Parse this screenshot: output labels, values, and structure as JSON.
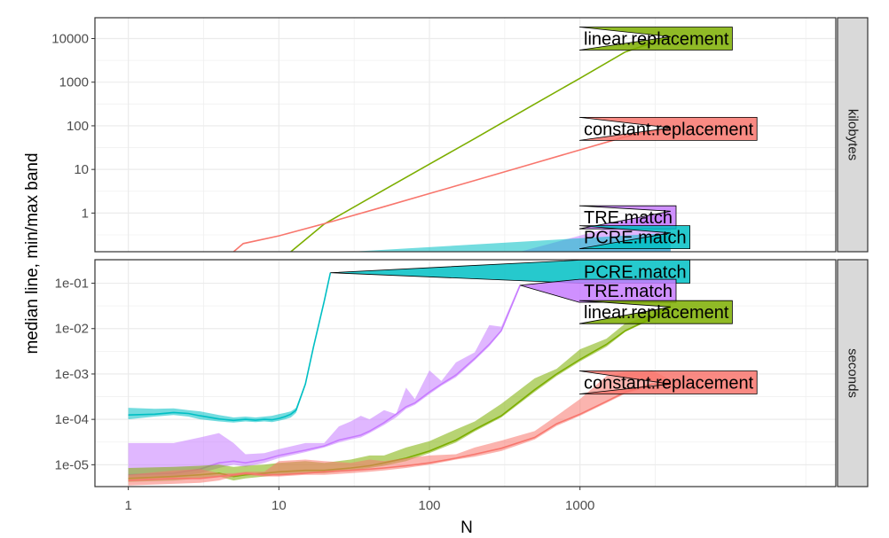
{
  "chart_data": {
    "type": "line",
    "xlabel": "N",
    "ylabel": "median line, min/max band",
    "x_scale": "log10",
    "x_ticks": [
      1,
      10,
      100,
      1000
    ],
    "x_tick_labels": [
      "1",
      "10",
      "100",
      "1000"
    ],
    "xlim": [
      0.6,
      50000
    ],
    "grid": true,
    "colors": {
      "constant.replacement": "#F8766D",
      "linear.replacement": "#7CAE00",
      "PCRE.match": "#00BFC4",
      "TRE.match": "#C77CFF"
    },
    "panels": [
      {
        "strip": "kilobytes",
        "y_scale": "log10",
        "ylim": [
          0.13,
          30000
        ],
        "y_ticks": [
          1,
          10,
          100,
          1000,
          10000
        ],
        "y_tick_labels": [
          "1",
          "10",
          "100",
          "1000",
          "10000"
        ],
        "series": [
          {
            "name": "linear.replacement",
            "x": [
              12,
              20,
              50,
              100,
              200,
              500,
              1000,
              2000,
              4000
            ],
            "median": [
              0.13,
              0.56,
              3.4,
              13.2,
              51,
              315,
              1230,
              4920,
              11000
            ]
          },
          {
            "name": "constant.replacement",
            "x": [
              5,
              5.8,
              7,
              10,
              20,
              50,
              100,
              200,
              500,
              1000,
              2000,
              4000
            ],
            "median": [
              0.13,
              0.2,
              0.23,
              0.3,
              0.57,
              1.4,
              2.8,
              5.6,
              14,
              28,
              56,
              90
            ]
          },
          {
            "name": "TRE.match",
            "x": [
              400,
              4000
            ],
            "min": [
              0.13,
              0.13
            ],
            "max": [
              0.13,
              1.1
            ]
          },
          {
            "name": "PCRE.match",
            "x": [
              30,
              4000
            ],
            "min": [
              0.13,
              0.13
            ],
            "max": [
              0.13,
              0.35
            ]
          }
        ],
        "labels": [
          {
            "series": "linear.replacement",
            "text": "linear.replacement",
            "y": 10000
          },
          {
            "series": "constant.replacement",
            "text": "constant.replacement",
            "y": 85
          },
          {
            "series": "TRE.match",
            "text": "TRE.match",
            "y": 0.8
          },
          {
            "series": "PCRE.match",
            "text": "PCRE.match",
            "y": 0.28
          }
        ]
      },
      {
        "strip": "seconds",
        "y_scale": "log10",
        "ylim": [
          3.3e-06,
          0.33
        ],
        "y_ticks": [
          1e-05,
          0.0001,
          0.001,
          0.01,
          0.1
        ],
        "y_tick_labels": [
          "1e-05",
          "1e-04",
          "1e-03",
          "1e-02",
          "1e-01"
        ],
        "series": [
          {
            "name": "PCRE.match",
            "x": [
              1,
              1.5,
              2,
              2.5,
              3,
              4,
              5,
              6,
              7,
              8,
              9,
              10,
              11,
              12,
              13,
              15,
              17,
              20,
              22
            ],
            "median": [
              0.000125,
              0.00013,
              0.000142,
              0.000135,
              0.00012,
              0.000102,
              9.5e-05,
              0.0001,
              9.6e-05,
              0.0001,
              9.8e-05,
              0.000105,
              0.000115,
              0.00013,
              0.00016,
              0.0006,
              0.004,
              0.04,
              0.17
            ],
            "min": [
              0.0001,
              0.000115,
              0.000125,
              0.000115,
              0.0001,
              9e-05,
              8.5e-05,
              9e-05,
              8.7e-05,
              9e-05,
              8.7e-05,
              9.3e-05,
              0.0001,
              0.00011,
              0.00014,
              0.00055,
              0.0036,
              0.036,
              0.16
            ],
            "max": [
              0.00018,
              0.00017,
              0.000175,
              0.00016,
              0.00015,
              0.000125,
              0.00011,
              0.000115,
              0.00011,
              0.000115,
              0.00012,
              0.00013,
              0.00014,
              0.00015,
              0.00018,
              0.00065,
              0.0043,
              0.043,
              0.18
            ]
          },
          {
            "name": "TRE.match",
            "x": [
              1,
              2,
              3,
              4,
              5,
              6,
              8,
              10,
              15,
              20,
              25,
              30,
              35,
              40,
              50,
              60,
              70,
              80,
              100,
              120,
              150,
              200,
              250,
              300,
              400
            ],
            "median": [
              6e-06,
              6.5e-06,
              8e-06,
              1.1e-05,
              1.2e-05,
              1.1e-05,
              1.3e-05,
              1.6e-05,
              2.1e-05,
              2.6e-05,
              3.5e-05,
              4e-05,
              4.5e-05,
              5.5e-05,
              8.5e-05,
              0.00013,
              0.00019,
              0.00023,
              0.0004,
              0.0006,
              0.00095,
              0.0022,
              0.0045,
              0.009,
              0.09
            ],
            "min": [
              5e-06,
              5.5e-06,
              6.5e-06,
              8.5e-06,
              1e-05,
              9e-06,
              1.1e-05,
              1.4e-05,
              1.9e-05,
              2.4e-05,
              3.1e-05,
              3.6e-05,
              4e-05,
              5e-05,
              7.5e-05,
              0.00011,
              0.00017,
              0.00021,
              0.00036,
              0.00055,
              0.00085,
              0.002,
              0.0041,
              0.0085,
              0.085
            ],
            "max": [
              3e-05,
              3e-05,
              4e-05,
              5e-05,
              3e-05,
              1.7e-05,
              1.8e-05,
              2.2e-05,
              3e-05,
              3e-05,
              7e-05,
              9e-05,
              0.00012,
              0.0001,
              0.00016,
              0.00013,
              0.0005,
              0.00028,
              0.0012,
              0.0007,
              0.0018,
              0.003,
              0.012,
              0.011,
              0.1
            ]
          },
          {
            "name": "linear.replacement",
            "x": [
              1,
              2,
              3,
              4,
              5,
              6,
              8,
              10,
              15,
              20,
              30,
              40,
              50,
              70,
              100,
              150,
              200,
              300,
              500,
              700,
              1000,
              1500,
              2000,
              3000,
              4000
            ],
            "median": [
              5e-06,
              5.5e-06,
              6e-06,
              6.5e-06,
              5.5e-06,
              6e-06,
              6.5e-06,
              7e-06,
              7.5e-06,
              7.5e-06,
              8.5e-06,
              9.5e-06,
              1.1e-05,
              1.4e-05,
              2e-05,
              3.5e-05,
              6e-05,
              0.00012,
              0.00045,
              0.001,
              0.0021,
              0.0045,
              0.009,
              0.017,
              0.03
            ],
            "min": [
              4.2e-06,
              4.5e-06,
              5e-06,
              5.5e-06,
              4.5e-06,
              5e-06,
              5.5e-06,
              6e-06,
              6.5e-06,
              6.5e-06,
              7.5e-06,
              8.5e-06,
              9.5e-06,
              1.2e-05,
              1.8e-05,
              3.1e-05,
              5.4e-05,
              0.00011,
              0.0004,
              0.0009,
              0.0019,
              0.004,
              0.0085,
              0.016,
              0.028
            ],
            "max": [
              8.5e-06,
              9e-06,
              9.5e-06,
              1e-05,
              9e-06,
              9.5e-06,
              1e-05,
              1.1e-05,
              1.2e-05,
              1.1e-05,
              1.3e-05,
              1.6e-05,
              1.6e-05,
              2.4e-05,
              3.3e-05,
              6e-05,
              9e-05,
              0.00022,
              0.0008,
              0.0013,
              0.0035,
              0.006,
              0.013,
              0.02,
              0.035
            ]
          },
          {
            "name": "constant.replacement",
            "x": [
              1,
              2,
              3,
              4,
              5,
              6,
              8,
              10,
              15,
              20,
              30,
              40,
              50,
              70,
              100,
              150,
              200,
              300,
              500,
              700,
              1000,
              1500,
              2000,
              3000,
              4000
            ],
            "median": [
              4.5e-06,
              5e-06,
              5e-06,
              5.5e-06,
              6e-06,
              6.5e-06,
              6e-06,
              6e-06,
              6.5e-06,
              7e-06,
              7.5e-06,
              8e-06,
              8.5e-06,
              9.5e-06,
              1.1e-05,
              1.4e-05,
              1.7e-05,
              2.3e-05,
              4e-05,
              8e-05,
              0.00013,
              0.00025,
              0.0004,
              0.0006,
              0.0006
            ],
            "min": [
              3.5e-06,
              3.8e-06,
              4e-06,
              4.5e-06,
              5.5e-06,
              6e-06,
              5.5e-06,
              5.5e-06,
              6e-06,
              6e-06,
              6.5e-06,
              7e-06,
              7.5e-06,
              8.5e-06,
              1e-05,
              1.3e-05,
              1.5e-05,
              2e-05,
              3.6e-05,
              7.2e-05,
              0.00012,
              0.00023,
              0.00037,
              0.00055,
              0.00055
            ],
            "max": [
              6e-06,
              7.5e-06,
              8e-06,
              6.5e-06,
              6.5e-06,
              7e-06,
              7e-06,
              1.2e-05,
              1.3e-05,
              1.2e-05,
              1.1e-05,
              1.3e-05,
              1.2e-05,
              1.4e-05,
              1.6e-05,
              1.7e-05,
              2.4e-05,
              3.4e-05,
              5.5e-05,
              0.00012,
              0.00028,
              0.0009,
              0.0011,
              0.0012,
              0.00075
            ]
          }
        ],
        "labels": [
          {
            "series": "PCRE.match",
            "text": "PCRE.match",
            "y": 0.18
          },
          {
            "series": "TRE.match",
            "text": "TRE.match",
            "y": 0.068
          },
          {
            "series": "linear.replacement",
            "text": "linear.replacement",
            "y": 0.023
          },
          {
            "series": "constant.replacement",
            "text": "constant.replacement",
            "y": 0.00065
          }
        ]
      }
    ]
  }
}
